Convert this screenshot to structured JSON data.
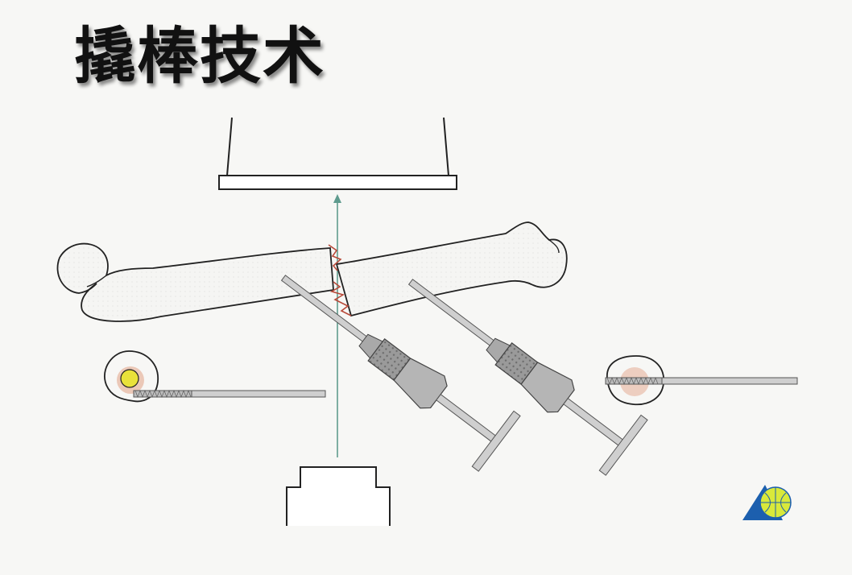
{
  "slide": {
    "title": "撬棒技术"
  },
  "colors": {
    "background": "#f7f7f5",
    "outline": "#222222",
    "bone_fill": "#f4f4f2",
    "beam": "#5f9b8e",
    "fracture": "#b84a3a",
    "rod": "#cfcfcf",
    "chuck": "#a9a9a9",
    "marrow_yellow": "#e9e23a",
    "marrow_pink": "#e6b39d",
    "logo_blue": "#1c5fae",
    "logo_globe": "#d9e93a"
  },
  "icons": {
    "logo": "ao-foundation-logo-icon"
  }
}
